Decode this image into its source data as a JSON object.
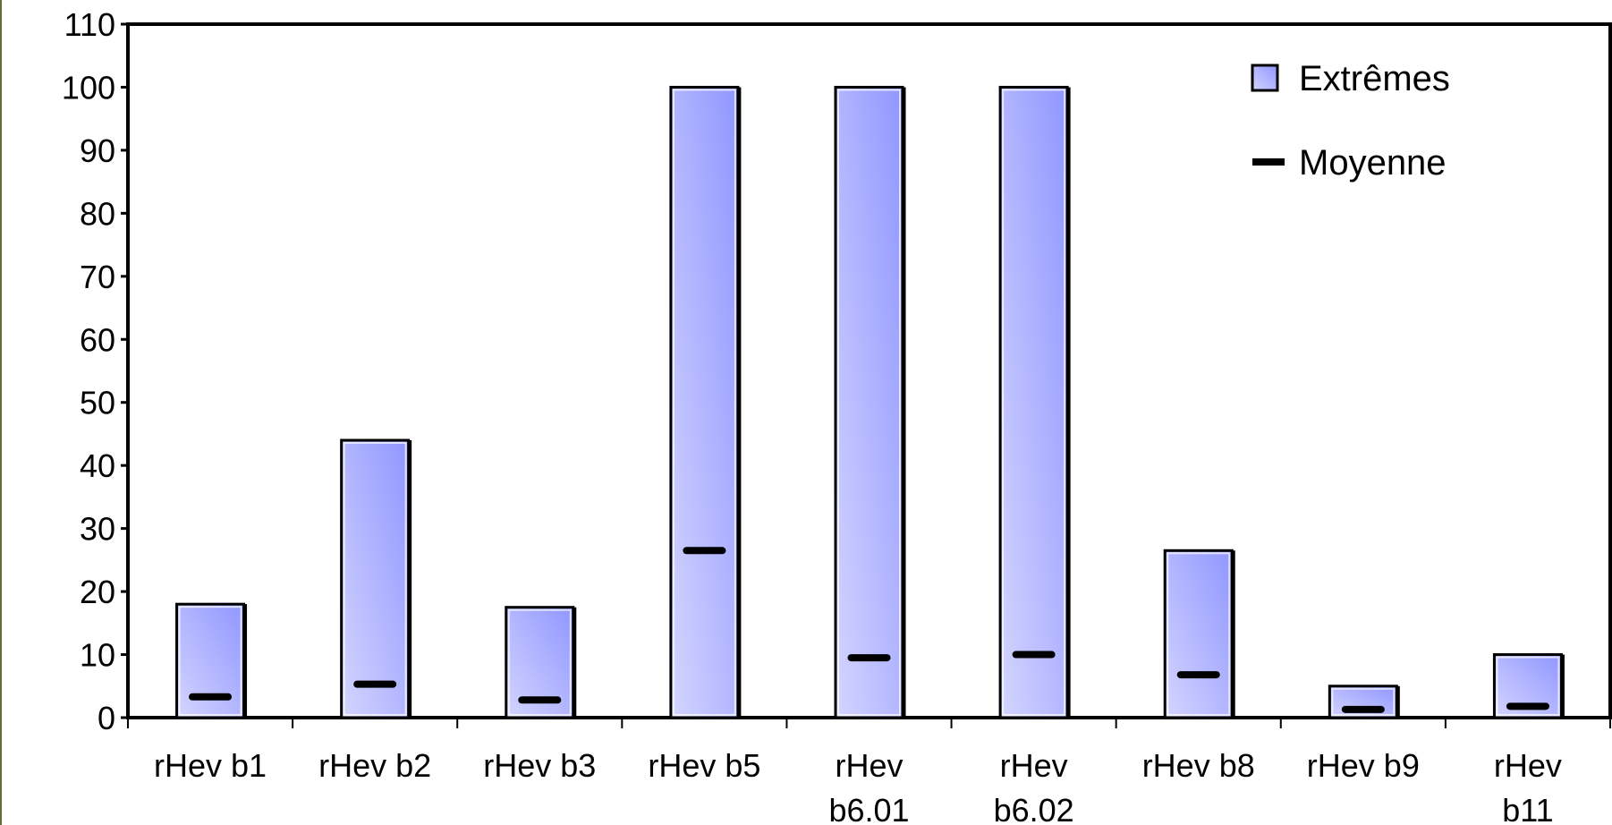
{
  "chart_data": {
    "type": "bar",
    "title": "",
    "xlabel": "",
    "ylabel": "",
    "ylim": [
      0,
      110
    ],
    "yticks": [
      0,
      10,
      20,
      30,
      40,
      50,
      60,
      70,
      80,
      90,
      100,
      110
    ],
    "categories": [
      [
        "rHev b1"
      ],
      [
        "rHev b2"
      ],
      [
        "rHev b3"
      ],
      [
        "rHev b5"
      ],
      [
        "rHev",
        "b6.01"
      ],
      [
        "rHev",
        "b6.02"
      ],
      [
        "rHev b8"
      ],
      [
        "rHev b9"
      ],
      [
        "rHev",
        "b11"
      ]
    ],
    "series": [
      {
        "name": "Extrêmes",
        "kind": "bar",
        "values": [
          18,
          44,
          17.5,
          100,
          100,
          100,
          26.5,
          5,
          10
        ]
      },
      {
        "name": "Moyenne",
        "kind": "marker",
        "values": [
          3.3,
          5.3,
          2.8,
          26.5,
          9.5,
          10,
          6.8,
          1.3,
          1.8
        ]
      }
    ],
    "legend": {
      "position": "top-right"
    },
    "grid": false,
    "colors": {
      "bar_light": "#d4d5ff",
      "bar_dark": "#9096ff",
      "outline": "#000000",
      "edge": "#6b6b3a"
    }
  }
}
